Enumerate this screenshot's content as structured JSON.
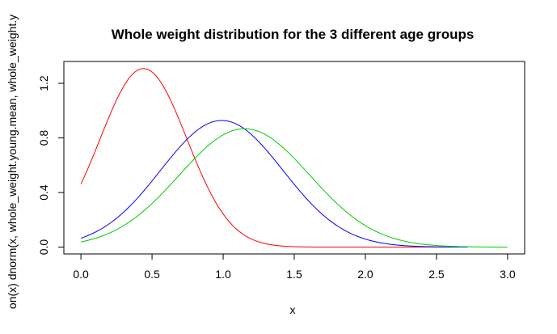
{
  "chart_data": {
    "type": "line",
    "title": "Whole weight distribution for the 3 different age groups",
    "xlabel": "x",
    "ylabel": "on(x) dnorm(x, whole_weight.young.mean, whole_weight.y",
    "xlim": [
      -0.12,
      3.12
    ],
    "ylim": [
      -0.05,
      1.36
    ],
    "xticks": [
      0.0,
      0.5,
      1.0,
      1.5,
      2.0,
      2.5,
      3.0
    ],
    "xtick_labels": [
      "0.0",
      "0.5",
      "1.0",
      "1.5",
      "2.0",
      "2.5",
      "3.0"
    ],
    "yticks": [
      0.0,
      0.4,
      0.8,
      1.2
    ],
    "ytick_labels": [
      "0.0",
      "0.4",
      "0.8",
      "1.2"
    ],
    "grid": false,
    "legend": "none",
    "series": [
      {
        "color": "#ff0000",
        "distribution": "normal",
        "mean": 0.44,
        "sd": 0.305,
        "x_range": [
          0.0,
          2.72
        ]
      },
      {
        "color": "#0000ff",
        "distribution": "normal",
        "mean": 0.99,
        "sd": 0.43,
        "x_range": [
          0.0,
          2.72
        ]
      },
      {
        "color": "#00cc00",
        "distribution": "normal",
        "mean": 1.15,
        "sd": 0.46,
        "x_range": [
          0.0,
          3.0
        ]
      }
    ]
  }
}
